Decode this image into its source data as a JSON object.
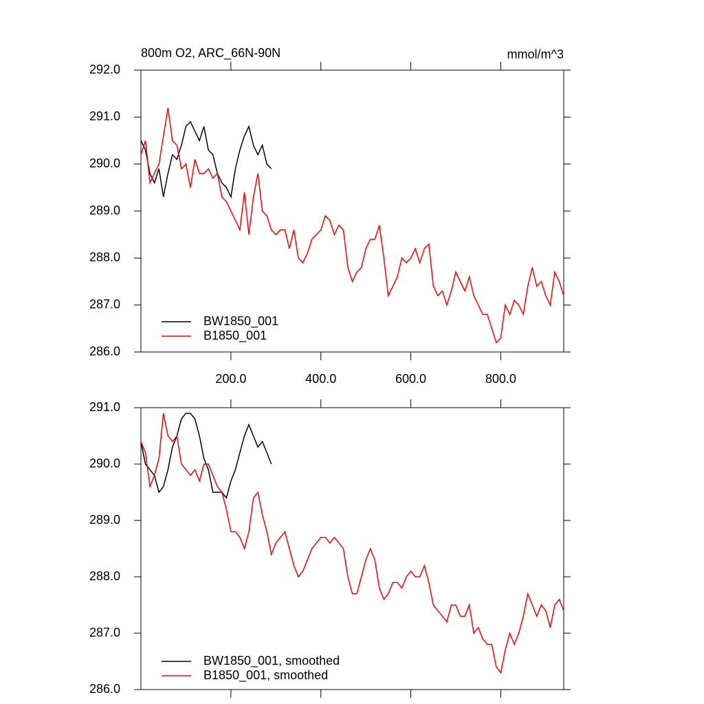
{
  "chart_data": [
    {
      "type": "line",
      "title": "800m O2, ARC_66N-90N",
      "units": "mmol/m^3",
      "xlim": [
        0,
        940
      ],
      "xticks": [
        {
          "value": 200,
          "label": "200.0"
        },
        {
          "value": 400,
          "label": "400.0"
        },
        {
          "value": 600,
          "label": "600.0"
        },
        {
          "value": 800,
          "label": "800.0"
        }
      ],
      "ylim": [
        286,
        292
      ],
      "yticks": [
        {
          "value": 286,
          "label": "286.0"
        },
        {
          "value": 287,
          "label": "287.0"
        },
        {
          "value": 288,
          "label": "288.0"
        },
        {
          "value": 289,
          "label": "289.0"
        },
        {
          "value": 290,
          "label": "290.0"
        },
        {
          "value": 291,
          "label": "291.0"
        },
        {
          "value": 292,
          "label": "292.0"
        }
      ],
      "series": [
        {
          "name": "BW1850_001",
          "color": "#000000",
          "x": [
            0,
            10,
            20,
            30,
            40,
            50,
            60,
            70,
            80,
            90,
            100,
            110,
            120,
            130,
            140,
            150,
            160,
            170,
            180,
            190,
            200,
            210,
            220,
            230,
            240,
            250,
            260,
            270,
            280,
            290
          ],
          "values": [
            290.5,
            290.3,
            289.8,
            289.6,
            289.9,
            289.3,
            289.8,
            290.2,
            290.1,
            290.4,
            290.8,
            290.9,
            290.7,
            290.5,
            290.8,
            290.3,
            290.2,
            289.8,
            289.6,
            289.5,
            289.3,
            289.9,
            290.3,
            290.6,
            290.8,
            290.4,
            290.2,
            290.4,
            290.0,
            289.9
          ]
        },
        {
          "name": "B1850_001",
          "color": "#ff0000",
          "x": [
            0,
            10,
            20,
            30,
            40,
            50,
            60,
            70,
            80,
            90,
            100,
            110,
            120,
            130,
            140,
            150,
            160,
            170,
            180,
            190,
            200,
            210,
            220,
            230,
            240,
            250,
            260,
            270,
            280,
            290,
            300,
            310,
            320,
            330,
            340,
            350,
            360,
            370,
            380,
            390,
            400,
            410,
            420,
            430,
            440,
            450,
            460,
            470,
            480,
            490,
            500,
            510,
            520,
            530,
            540,
            550,
            560,
            570,
            580,
            590,
            600,
            610,
            620,
            630,
            640,
            650,
            660,
            670,
            680,
            690,
            700,
            710,
            720,
            730,
            740,
            750,
            760,
            770,
            780,
            790,
            800,
            810,
            820,
            830,
            840,
            850,
            860,
            870,
            880,
            890,
            900,
            910,
            920,
            930,
            940
          ],
          "values": [
            290.2,
            290.5,
            289.6,
            289.8,
            290.0,
            290.6,
            291.2,
            290.5,
            290.4,
            289.9,
            290.0,
            289.5,
            290.1,
            289.8,
            289.8,
            289.9,
            289.7,
            289.8,
            289.3,
            289.2,
            289.0,
            288.8,
            288.6,
            289.4,
            288.5,
            289.3,
            289.8,
            289.0,
            288.9,
            288.6,
            288.5,
            288.6,
            288.6,
            288.2,
            288.6,
            288.0,
            287.9,
            288.1,
            288.4,
            288.5,
            288.6,
            288.9,
            288.8,
            288.5,
            288.7,
            288.6,
            287.8,
            287.5,
            287.7,
            287.8,
            288.2,
            288.4,
            288.4,
            288.7,
            288.0,
            287.2,
            287.4,
            287.6,
            288.0,
            287.9,
            288.0,
            288.2,
            287.9,
            288.2,
            288.3,
            287.4,
            287.2,
            287.3,
            287.0,
            287.3,
            287.7,
            287.5,
            287.3,
            287.6,
            287.2,
            287.0,
            286.8,
            286.8,
            286.5,
            286.2,
            286.3,
            287.0,
            286.8,
            287.1,
            287.0,
            286.8,
            287.4,
            287.8,
            287.4,
            287.5,
            287.2,
            287.0,
            287.7,
            287.5,
            287.2
          ]
        }
      ]
    },
    {
      "type": "line",
      "xlim": [
        0,
        940
      ],
      "xticks": [
        200,
        400,
        600,
        800
      ],
      "ylim": [
        286,
        291
      ],
      "yticks": [
        {
          "value": 286,
          "label": "286.0"
        },
        {
          "value": 287,
          "label": "287.0"
        },
        {
          "value": 288,
          "label": "288.0"
        },
        {
          "value": 289,
          "label": "289.0"
        },
        {
          "value": 290,
          "label": "290.0"
        },
        {
          "value": 291,
          "label": "291.0"
        }
      ],
      "series": [
        {
          "name": "BW1850_001, smoothed",
          "color": "#000000",
          "x": [
            0,
            10,
            20,
            30,
            40,
            50,
            60,
            70,
            80,
            90,
            100,
            110,
            120,
            130,
            140,
            150,
            160,
            170,
            180,
            190,
            200,
            210,
            220,
            230,
            240,
            250,
            260,
            270,
            280,
            290
          ],
          "values": [
            290.4,
            290.0,
            289.9,
            289.8,
            289.5,
            289.6,
            289.9,
            290.3,
            290.5,
            290.8,
            290.9,
            290.9,
            290.8,
            290.5,
            290.1,
            289.9,
            289.5,
            289.5,
            289.5,
            289.4,
            289.7,
            289.9,
            290.2,
            290.5,
            290.7,
            290.5,
            290.3,
            290.4,
            290.2,
            290.0
          ]
        },
        {
          "name": "B1850_001, smoothed",
          "color": "#ff0000",
          "x": [
            0,
            10,
            20,
            30,
            40,
            50,
            60,
            70,
            80,
            90,
            100,
            110,
            120,
            130,
            140,
            150,
            160,
            170,
            180,
            190,
            200,
            210,
            220,
            230,
            240,
            250,
            260,
            270,
            280,
            290,
            300,
            310,
            320,
            330,
            340,
            350,
            360,
            370,
            380,
            390,
            400,
            410,
            420,
            430,
            440,
            450,
            460,
            470,
            480,
            490,
            500,
            510,
            520,
            530,
            540,
            550,
            560,
            570,
            580,
            590,
            600,
            610,
            620,
            630,
            640,
            650,
            660,
            670,
            680,
            690,
            700,
            710,
            720,
            730,
            740,
            750,
            760,
            770,
            780,
            790,
            800,
            810,
            820,
            830,
            840,
            850,
            860,
            870,
            880,
            890,
            900,
            910,
            920,
            930,
            940
          ],
          "values": [
            290.4,
            290.2,
            289.6,
            289.8,
            290.1,
            290.9,
            290.5,
            290.4,
            290.5,
            290.0,
            289.9,
            289.8,
            289.9,
            289.7,
            290.0,
            290.0,
            289.8,
            289.6,
            289.5,
            289.2,
            288.8,
            288.8,
            288.7,
            288.5,
            288.8,
            289.4,
            289.5,
            289.1,
            288.8,
            288.4,
            288.6,
            288.7,
            288.8,
            288.5,
            288.2,
            288.0,
            288.1,
            288.3,
            288.5,
            288.6,
            288.7,
            288.7,
            288.6,
            288.7,
            288.6,
            288.5,
            288.0,
            287.7,
            287.7,
            288.0,
            288.3,
            288.5,
            288.3,
            287.8,
            287.6,
            287.7,
            287.9,
            287.9,
            287.8,
            288.0,
            288.1,
            288.0,
            288.0,
            288.2,
            287.9,
            287.5,
            287.4,
            287.3,
            287.2,
            287.5,
            287.5,
            287.3,
            287.3,
            287.5,
            287.0,
            287.1,
            286.9,
            286.8,
            286.8,
            286.4,
            286.3,
            286.7,
            287.0,
            286.8,
            287.0,
            287.3,
            287.7,
            287.5,
            287.3,
            287.5,
            287.4,
            287.1,
            287.5,
            287.6,
            287.4
          ]
        }
      ]
    }
  ]
}
